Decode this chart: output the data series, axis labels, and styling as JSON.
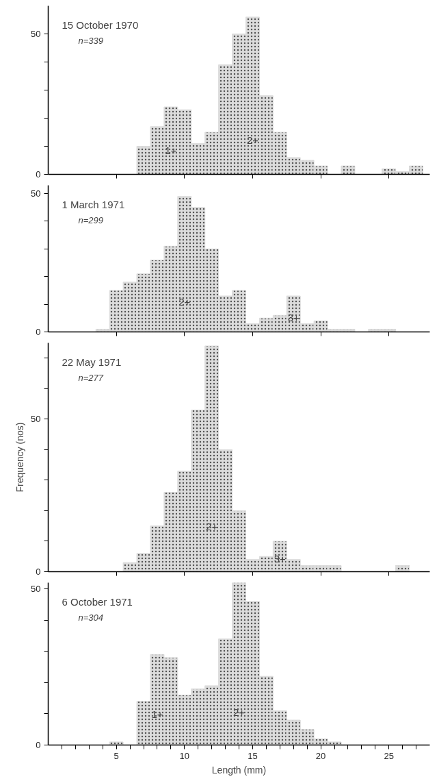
{
  "chart_data": [
    {
      "type": "histogram",
      "title": "15 October 1970",
      "subtitle": "n=339",
      "bins": [
        0.5,
        1.5,
        2.5,
        3.5,
        4.5,
        5.5,
        6.5,
        7.5,
        8.5,
        9.5,
        10.5,
        11.5,
        12.5,
        13.5,
        14.5,
        15.5,
        16.5,
        17.5,
        18.5,
        19.5,
        20.5,
        21.5,
        22.5,
        23.5,
        24.5,
        25.5,
        26.5,
        27.5
      ],
      "values": [
        0,
        0,
        0,
        0,
        0,
        0,
        10,
        17,
        24,
        23,
        11,
        15,
        39,
        50,
        56,
        28,
        15,
        6,
        5,
        3,
        0,
        3,
        0,
        0,
        2,
        1,
        3
      ],
      "color": "#dcdcdc",
      "xlim": [
        0,
        28
      ],
      "ylim": [
        0,
        60
      ],
      "xticks": [
        {
          "value": 5,
          "label": null
        },
        {
          "value": 10,
          "label": null
        },
        {
          "value": 15,
          "label": null
        },
        {
          "value": 20,
          "label": null
        },
        {
          "value": 25,
          "label": null
        }
      ],
      "yticks": [
        0,
        {
          "value": 10,
          "label": null
        },
        {
          "value": 20,
          "label": null
        },
        {
          "value": 30,
          "label": null
        },
        {
          "value": 40,
          "label": null
        },
        50
      ],
      "tick_labels": "y",
      "annotations": [
        "1+",
        "2+"
      ]
    },
    {
      "type": "histogram",
      "title": "1 March 1971",
      "subtitle": "n=299",
      "bins": [
        0.5,
        1.5,
        2.5,
        3.5,
        4.5,
        5.5,
        6.5,
        7.5,
        8.5,
        9.5,
        10.5,
        11.5,
        12.5,
        13.5,
        14.5,
        15.5,
        16.5,
        17.5,
        18.5,
        19.5,
        20.5,
        21.5,
        22.5,
        23.5,
        24.5,
        25.5,
        26.5,
        27.5
      ],
      "values": [
        0,
        0,
        0,
        1,
        15,
        18,
        21,
        26,
        31,
        49,
        45,
        30,
        13,
        15,
        3,
        5,
        6,
        13,
        3,
        4,
        1,
        1,
        0,
        1,
        1,
        0,
        0
      ],
      "color": "#dcdcdc",
      "xlim": [
        0,
        28
      ],
      "ylim": [
        0,
        53
      ],
      "xticks": [
        {
          "value": 5,
          "label": null
        },
        {
          "value": 10,
          "label": null
        },
        {
          "value": 15,
          "label": null
        },
        {
          "value": 20,
          "label": null
        },
        {
          "value": 25,
          "label": null
        }
      ],
      "yticks": [
        0,
        {
          "value": 10,
          "label": null
        },
        {
          "value": 20,
          "label": null
        },
        {
          "value": 30,
          "label": null
        },
        {
          "value": 40,
          "label": null
        },
        50
      ],
      "tick_labels": "y",
      "annotations": [
        "2+",
        "3+"
      ]
    },
    {
      "type": "histogram",
      "title": "22 May 1971",
      "subtitle": "n=277",
      "ylabel": "Frequency (nos)",
      "bins": [
        0.5,
        1.5,
        2.5,
        3.5,
        4.5,
        5.5,
        6.5,
        7.5,
        8.5,
        9.5,
        10.5,
        11.5,
        12.5,
        13.5,
        14.5,
        15.5,
        16.5,
        17.5,
        18.5,
        19.5,
        20.5,
        21.5,
        22.5,
        23.5,
        24.5,
        25.5,
        26.5,
        27.5
      ],
      "values": [
        0,
        0,
        0,
        0,
        0,
        3,
        6,
        15,
        26,
        33,
        53,
        74,
        40,
        20,
        4,
        5,
        10,
        4,
        2,
        2,
        2,
        0,
        0,
        0,
        0,
        2,
        0
      ],
      "color": "#dcdcdc",
      "xlim": [
        0,
        28
      ],
      "ylim": [
        0,
        75
      ],
      "xticks": [
        {
          "value": 5,
          "label": null
        },
        {
          "value": 10,
          "label": null
        },
        {
          "value": 15,
          "label": null
        },
        {
          "value": 20,
          "label": null
        },
        {
          "value": 25,
          "label": null
        }
      ],
      "yticks": [
        0,
        {
          "value": 10,
          "label": null
        },
        {
          "value": 20,
          "label": null
        },
        {
          "value": 30,
          "label": null
        },
        {
          "value": 40,
          "label": null
        },
        50,
        {
          "value": 60,
          "label": null
        },
        {
          "value": 70,
          "label": null
        }
      ],
      "tick_labels": "y",
      "annotations": [
        "2+",
        "3+"
      ]
    },
    {
      "type": "histogram",
      "title": "6 October 1971",
      "subtitle": "n=304",
      "xlabel": "Length (mm)",
      "bins": [
        0.5,
        1.5,
        2.5,
        3.5,
        4.5,
        5.5,
        6.5,
        7.5,
        8.5,
        9.5,
        10.5,
        11.5,
        12.5,
        13.5,
        14.5,
        15.5,
        16.5,
        17.5,
        18.5,
        19.5,
        20.5,
        21.5,
        22.5,
        23.5,
        24.5,
        25.5,
        26.5,
        27.5
      ],
      "values": [
        0,
        0,
        0,
        0,
        1,
        0,
        14,
        29,
        28,
        16,
        18,
        19,
        34,
        52,
        46,
        22,
        11,
        8,
        5,
        2,
        1,
        0,
        0,
        0,
        0,
        0,
        0
      ],
      "color": "#dcdcdc",
      "xlim": [
        0,
        28
      ],
      "ylim": [
        0,
        52
      ],
      "xticks": [
        {
          "value": 1,
          "label": null
        },
        {
          "value": 2,
          "label": null
        },
        {
          "value": 3,
          "label": null
        },
        {
          "value": 4,
          "label": null
        },
        5,
        {
          "value": 6,
          "label": null
        },
        {
          "value": 7,
          "label": null
        },
        {
          "value": 8,
          "label": null
        },
        {
          "value": 9,
          "label": null
        },
        10,
        {
          "value": 11,
          "label": null
        },
        {
          "value": 12,
          "label": null
        },
        {
          "value": 13,
          "label": null
        },
        {
          "value": 14,
          "label": null
        },
        15,
        {
          "value": 16,
          "label": null
        },
        {
          "value": 17,
          "label": null
        },
        {
          "value": 18,
          "label": null
        },
        {
          "value": 19,
          "label": null
        },
        20,
        {
          "value": 21,
          "label": null
        },
        {
          "value": 22,
          "label": null
        },
        {
          "value": 23,
          "label": null
        },
        {
          "value": 24,
          "label": null
        },
        25,
        {
          "value": 26,
          "label": null
        },
        {
          "value": 27,
          "label": null
        }
      ],
      "yticks": [
        0,
        {
          "value": 10,
          "label": null
        },
        {
          "value": 20,
          "label": null
        },
        {
          "value": 30,
          "label": null
        },
        {
          "value": 40,
          "label": null
        },
        50
      ],
      "annotations": [
        "1+",
        "2+"
      ]
    }
  ]
}
